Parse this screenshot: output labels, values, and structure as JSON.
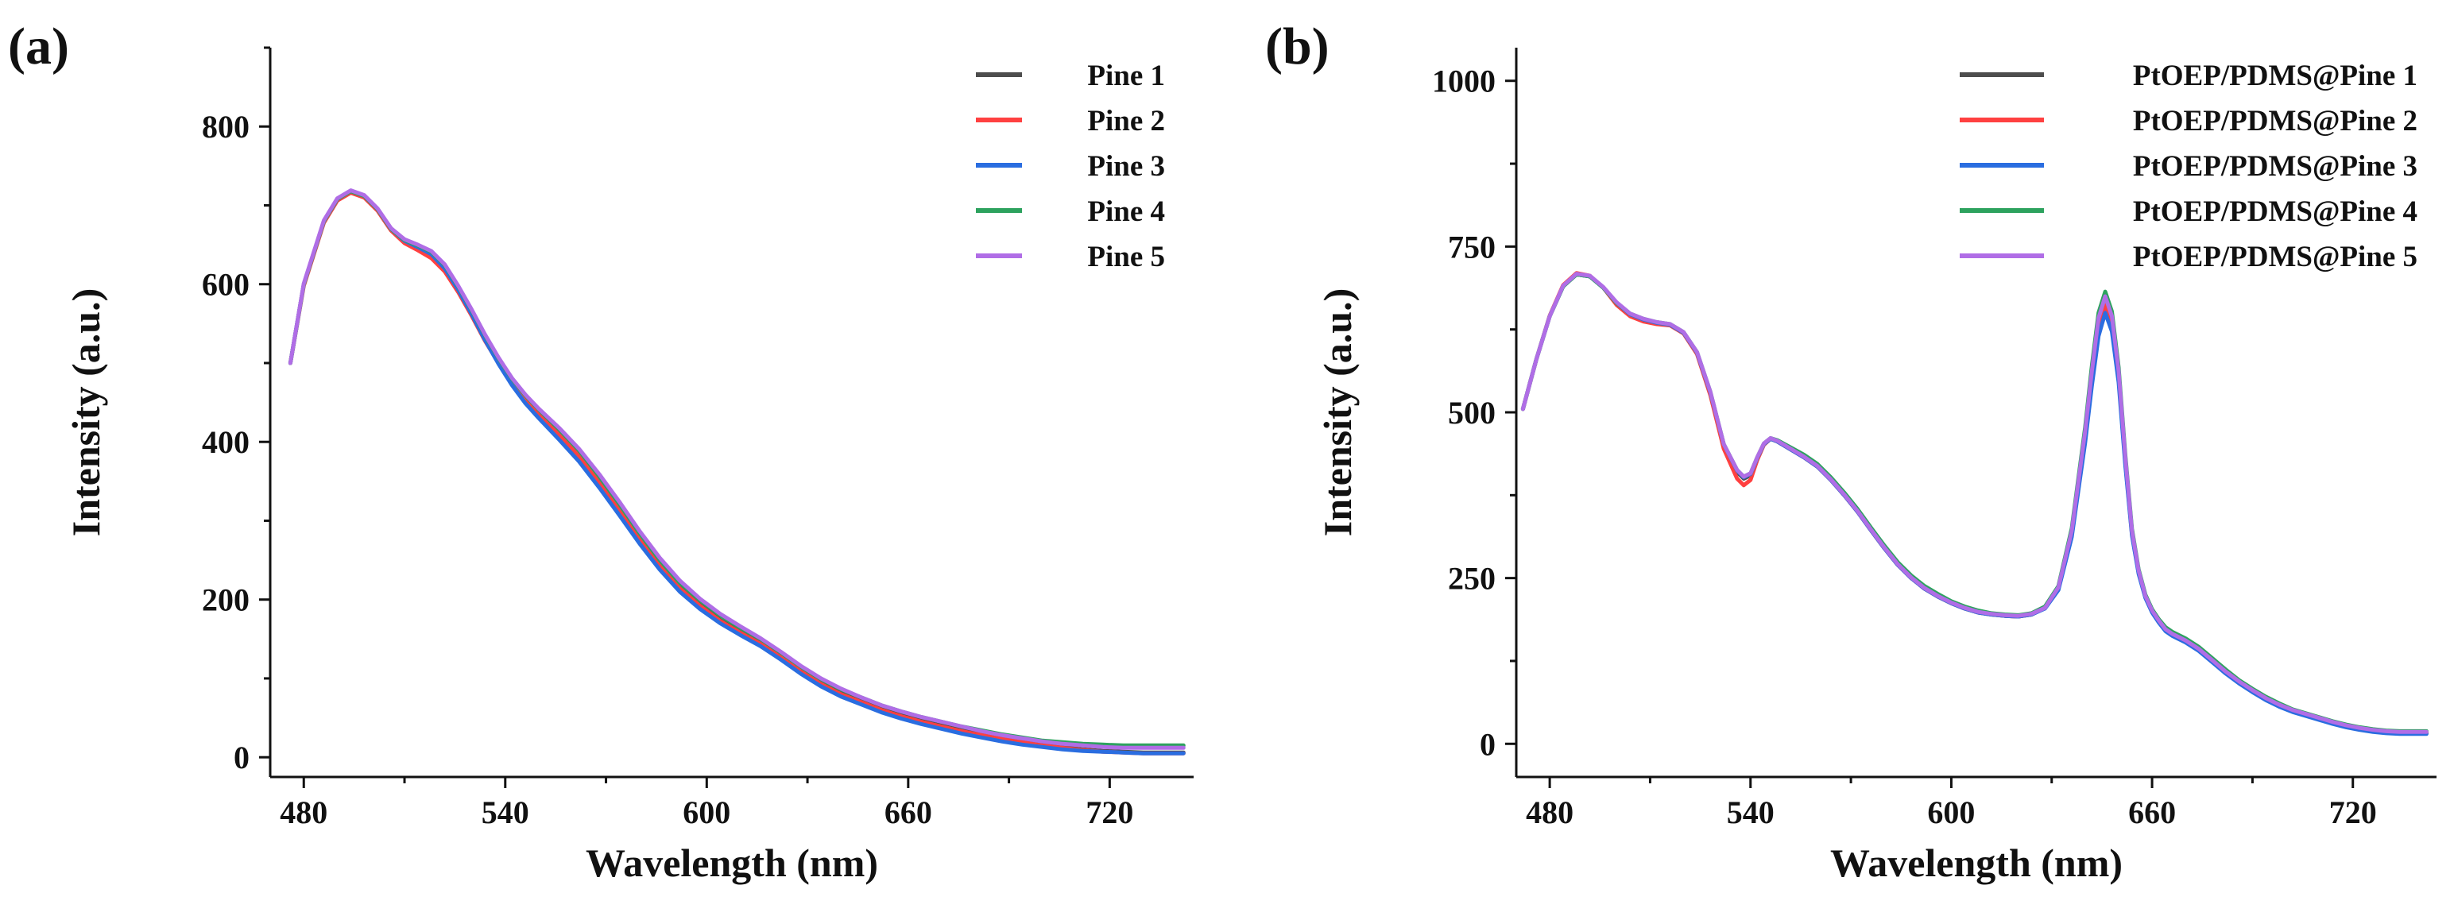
{
  "chart_data": [
    {
      "type": "line",
      "panel_label": "(a)",
      "xlabel": "Wavelength (nm)",
      "ylabel": "Intensity (a.u.)",
      "xlim": [
        470,
        745
      ],
      "ylim": [
        -25,
        900
      ],
      "xticks": [
        480,
        540,
        600,
        660,
        720
      ],
      "yticks": [
        0,
        200,
        400,
        600,
        800
      ],
      "legend_position": "top-right",
      "x": [
        476,
        480,
        486,
        490,
        494,
        498,
        502,
        506,
        510,
        514,
        518,
        522,
        526,
        530,
        534,
        538,
        542,
        546,
        550,
        556,
        562,
        568,
        574,
        580,
        586,
        592,
        598,
        604,
        610,
        616,
        622,
        628,
        634,
        640,
        646,
        652,
        658,
        664,
        670,
        676,
        682,
        688,
        694,
        700,
        706,
        712,
        718,
        724,
        730,
        736,
        742
      ],
      "series": [
        {
          "name": "Pine 1",
          "color": "#4d4d4d",
          "values": [
            500,
            600,
            680,
            708,
            718,
            712,
            695,
            670,
            655,
            648,
            640,
            622,
            595,
            565,
            532,
            503,
            477,
            455,
            436,
            410,
            383,
            350,
            315,
            278,
            244,
            215,
            193,
            174,
            159,
            145,
            128,
            110,
            94,
            81,
            71,
            61,
            53,
            46,
            40,
            34,
            29,
            24,
            20,
            16,
            13,
            10,
            8,
            7,
            6,
            6,
            6
          ]
        },
        {
          "name": "Pine 2",
          "color": "#ff4040",
          "values": [
            500,
            598,
            678,
            706,
            716,
            710,
            693,
            668,
            652,
            643,
            633,
            616,
            590,
            560,
            528,
            500,
            474,
            452,
            434,
            409,
            382,
            349,
            314,
            277,
            243,
            214,
            192,
            173,
            158,
            144,
            127,
            109,
            93,
            80,
            70,
            60,
            52,
            45,
            39,
            33,
            28,
            23,
            19,
            15,
            12,
            9,
            7,
            6,
            5,
            5,
            5
          ]
        },
        {
          "name": "Pine 3",
          "color": "#2a6de0",
          "values": [
            500,
            600,
            680,
            708,
            718,
            712,
            695,
            670,
            655,
            647,
            638,
            620,
            593,
            562,
            529,
            499,
            472,
            449,
            430,
            403,
            375,
            342,
            307,
            271,
            238,
            210,
            188,
            170,
            155,
            141,
            124,
            106,
            90,
            77,
            67,
            57,
            49,
            42,
            36,
            30,
            25,
            20,
            16,
            13,
            10,
            8,
            7,
            6,
            5,
            5,
            5
          ]
        },
        {
          "name": "Pine 4",
          "color": "#2da25e",
          "values": [
            500,
            600,
            680,
            708,
            718,
            712,
            695,
            670,
            656,
            649,
            641,
            624,
            597,
            567,
            535,
            506,
            480,
            459,
            441,
            416,
            389,
            356,
            321,
            284,
            250,
            221,
            199,
            180,
            164,
            150,
            133,
            115,
            99,
            86,
            76,
            66,
            58,
            51,
            45,
            39,
            34,
            29,
            25,
            21,
            19,
            17,
            16,
            15,
            15,
            15,
            15
          ]
        },
        {
          "name": "Pine 5",
          "color": "#b06de6",
          "values": [
            500,
            601,
            681,
            709,
            719,
            713,
            696,
            671,
            657,
            650,
            642,
            625,
            598,
            568,
            536,
            507,
            481,
            460,
            442,
            418,
            391,
            359,
            324,
            287,
            253,
            224,
            201,
            182,
            166,
            151,
            134,
            116,
            100,
            87,
            76,
            66,
            58,
            51,
            45,
            39,
            33,
            28,
            24,
            20,
            17,
            15,
            13,
            12,
            12,
            12,
            12
          ]
        }
      ]
    },
    {
      "type": "line",
      "panel_label": "(b)",
      "xlabel": "Wavelength (nm)",
      "ylabel": "Intensity (a.u.)",
      "xlim": [
        470,
        745
      ],
      "ylim": [
        -50,
        1050
      ],
      "xticks": [
        480,
        540,
        600,
        660,
        720
      ],
      "yticks": [
        0,
        250,
        500,
        750,
        1000
      ],
      "legend_position": "top-right",
      "x": [
        472,
        476,
        480,
        484,
        488,
        492,
        496,
        500,
        504,
        508,
        512,
        516,
        520,
        524,
        528,
        532,
        536,
        538,
        540,
        542,
        544,
        546,
        548,
        552,
        556,
        560,
        564,
        568,
        572,
        576,
        580,
        584,
        588,
        592,
        596,
        600,
        604,
        608,
        612,
        616,
        620,
        624,
        628,
        632,
        636,
        640,
        642,
        644,
        646,
        648,
        650,
        652,
        654,
        656,
        658,
        660,
        662,
        664,
        666,
        670,
        674,
        678,
        682,
        686,
        690,
        694,
        698,
        702,
        706,
        710,
        714,
        718,
        722,
        726,
        730,
        734,
        738,
        742
      ],
      "series": [
        {
          "name": "PtOEP/PDMS@Pine 1",
          "color": "#4d4d4d",
          "values": [
            505,
            580,
            645,
            690,
            708,
            705,
            688,
            665,
            648,
            640,
            635,
            632,
            620,
            590,
            530,
            450,
            410,
            400,
            405,
            430,
            452,
            460,
            456,
            444,
            432,
            418,
            398,
            375,
            350,
            322,
            295,
            270,
            250,
            234,
            222,
            212,
            204,
            198,
            195,
            193,
            192,
            195,
            205,
            235,
            320,
            470,
            560,
            640,
            672,
            642,
            560,
            430,
            320,
            260,
            222,
            200,
            185,
            172,
            165,
            155,
            142,
            125,
            108,
            93,
            80,
            68,
            58,
            50,
            44,
            38,
            32,
            27,
            23,
            20,
            18,
            17,
            17,
            17
          ]
        },
        {
          "name": "PtOEP/PDMS@Pine 2",
          "color": "#ff4040",
          "values": [
            505,
            580,
            646,
            692,
            710,
            706,
            688,
            662,
            645,
            637,
            633,
            631,
            619,
            588,
            526,
            445,
            400,
            390,
            398,
            428,
            451,
            460,
            456,
            444,
            432,
            418,
            398,
            375,
            350,
            322,
            295,
            270,
            250,
            234,
            222,
            212,
            204,
            198,
            195,
            193,
            192,
            195,
            205,
            234,
            318,
            466,
            555,
            632,
            662,
            632,
            552,
            424,
            316,
            258,
            221,
            199,
            184,
            171,
            164,
            154,
            141,
            124,
            107,
            92,
            79,
            67,
            57,
            49,
            43,
            37,
            31,
            26,
            22,
            19,
            17,
            16,
            16,
            16
          ]
        },
        {
          "name": "PtOEP/PDMS@Pine 3",
          "color": "#2a6de0",
          "values": [
            505,
            580,
            645,
            690,
            708,
            705,
            688,
            665,
            648,
            640,
            635,
            632,
            620,
            590,
            530,
            452,
            412,
            402,
            407,
            431,
            452,
            460,
            456,
            444,
            432,
            418,
            398,
            375,
            350,
            322,
            295,
            270,
            250,
            234,
            222,
            212,
            204,
            198,
            195,
            193,
            192,
            195,
            204,
            232,
            312,
            455,
            540,
            615,
            650,
            622,
            545,
            420,
            314,
            256,
            220,
            198,
            183,
            170,
            163,
            153,
            140,
            123,
            106,
            91,
            78,
            66,
            56,
            48,
            42,
            36,
            30,
            25,
            21,
            18,
            16,
            15,
            15,
            15
          ]
        },
        {
          "name": "PtOEP/PDMS@Pine 4",
          "color": "#2da25e",
          "values": [
            505,
            580,
            645,
            690,
            708,
            705,
            688,
            665,
            649,
            641,
            636,
            633,
            621,
            591,
            531,
            452,
            413,
            403,
            408,
            432,
            453,
            461,
            458,
            447,
            436,
            422,
            402,
            379,
            354,
            326,
            299,
            274,
            254,
            238,
            226,
            215,
            207,
            201,
            197,
            195,
            194,
            197,
            207,
            238,
            325,
            478,
            570,
            650,
            682,
            652,
            568,
            436,
            324,
            263,
            225,
            203,
            188,
            176,
            169,
            159,
            146,
            129,
            112,
            96,
            83,
            71,
            61,
            52,
            46,
            40,
            34,
            29,
            25,
            22,
            20,
            19,
            19,
            19
          ]
        },
        {
          "name": "PtOEP/PDMS@Pine 5",
          "color": "#b06de6",
          "values": [
            505,
            580,
            645,
            691,
            709,
            706,
            689,
            666,
            649,
            641,
            636,
            633,
            621,
            591,
            531,
            452,
            413,
            403,
            408,
            432,
            453,
            461,
            457,
            445,
            433,
            419,
            399,
            376,
            351,
            323,
            296,
            271,
            251,
            235,
            223,
            213,
            205,
            199,
            196,
            194,
            193,
            196,
            205,
            236,
            321,
            472,
            562,
            642,
            675,
            645,
            562,
            432,
            321,
            261,
            223,
            201,
            186,
            173,
            166,
            156,
            143,
            126,
            109,
            94,
            81,
            69,
            59,
            51,
            45,
            39,
            33,
            28,
            24,
            21,
            19,
            18,
            18,
            18
          ]
        }
      ]
    }
  ]
}
